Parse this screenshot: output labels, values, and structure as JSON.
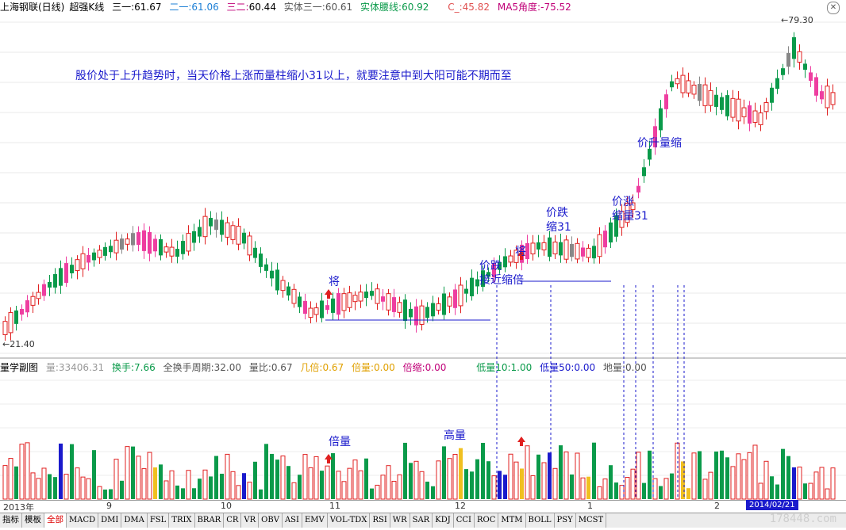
{
  "header": {
    "stock": "上海钢联(日线)",
    "indicator": "超强K线",
    "ma1_label": "三一:",
    "ma1_value": "61.67",
    "ma2_label": "二一:",
    "ma2_value": "61.06",
    "ma3_label": "三二:",
    "ma3_value": "60.44",
    "body_label": "实体三一:",
    "body_value": "60.61",
    "waist_label": "实体腰线:",
    "waist_value": "60.92",
    "c_label": "C_:",
    "c_value": "45.82",
    "angle_label": "MA5角度:",
    "angle_value": "-75.52",
    "close_icon": "close-icon"
  },
  "colors": {
    "up": "#e02020",
    "down": "#0a9a4a",
    "pink": "#ee3ea0",
    "gray": "#888888",
    "annotation": "#1a1acc",
    "yellow": "#f0c020",
    "blue": "#1a1acc"
  },
  "main_note": "股价处于上升趋势时，当天价格上涨而量柱缩小31以上，就要注意中到大阳可能不期而至",
  "price_labels": {
    "low": "21.40",
    "high": "79.30"
  },
  "annotations": {
    "jiang1": "将",
    "jiang2": "将",
    "near_shrink_1": "价跌",
    "near_shrink_2": "接近缩倍",
    "down_shrink_1": "价跌",
    "down_shrink_2": "缩31",
    "up_shrink_1": "价涨",
    "up_shrink_2": "缩量31",
    "up_vol_shrink": "价升量缩",
    "bei_liang": "倍量",
    "gao_liang": "高量"
  },
  "volume_header": {
    "title": "量学副图",
    "liang_label": "量:",
    "liang_value": "33406.31",
    "huanshou_label": "换手:",
    "huanshou_value": "7.66",
    "cycle_label": "全换手周期:",
    "cycle_value": "32.00",
    "ratio_label": "量比:",
    "ratio_value": "0.67",
    "jibei_label": "几倍:",
    "jibei_value": "0.67",
    "beiliang_label": "倍量:",
    "beiliang_value": "0.00",
    "beisuo_label": "倍缩:",
    "beisuo_value": "0.00",
    "dl10_label": "低量10:",
    "dl10_value": "1.00",
    "dl50_label": "低量50:",
    "dl50_value": "0.00",
    "diliang_label": "地量:",
    "diliang_value": "0.00"
  },
  "time_axis": [
    "2013年",
    "9",
    "10",
    "11",
    "12",
    "1",
    "2"
  ],
  "date_badge": "2014/02/21",
  "tabs": [
    "指标",
    "模板",
    "全部",
    "MACD",
    "DMI",
    "DMA",
    "FSL",
    "TRIX",
    "BRAR",
    "CR",
    "VR",
    "OBV",
    "ASI",
    "EMV",
    "VOL-TDX",
    "RSI",
    "WR",
    "SAR",
    "KDJ",
    "CCI",
    "ROC",
    "MTM",
    "BOLL",
    "PSY",
    "MCST"
  ],
  "active_tab": "全部",
  "watermark": "178448.com"
}
